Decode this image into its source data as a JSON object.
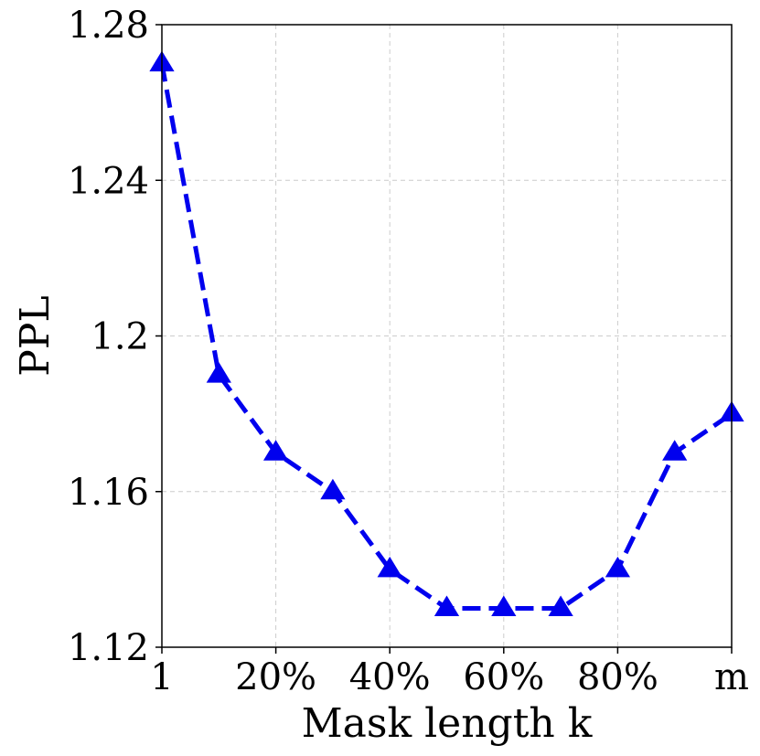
{
  "chart_data": {
    "type": "line",
    "title": "",
    "xlabel": "Mask length k",
    "ylabel": "PPL",
    "x": [
      0,
      1,
      2,
      3,
      4,
      5,
      6,
      7,
      8,
      9,
      10
    ],
    "x_tick_labels": [
      {
        "x": 0,
        "label": "1"
      },
      {
        "x": 2,
        "label": "20%"
      },
      {
        "x": 4,
        "label": "40%"
      },
      {
        "x": 6,
        "label": "60%"
      },
      {
        "x": 8,
        "label": "80%"
      },
      {
        "x": 10,
        "label": "m"
      }
    ],
    "y_ticks": [
      {
        "value": 1.12,
        "label": "1.12"
      },
      {
        "value": 1.16,
        "label": "1.16"
      },
      {
        "value": 1.2,
        "label": "1.2"
      },
      {
        "value": 1.24,
        "label": "1.24"
      },
      {
        "value": 1.28,
        "label": "1.28"
      }
    ],
    "xlim": [
      0,
      10
    ],
    "ylim": [
      1.12,
      1.28
    ],
    "grid": true,
    "series": [
      {
        "marker": "triangle-up",
        "line_style": "dashed",
        "color": "#0000ee",
        "values": [
          1.27,
          1.19,
          1.17,
          1.16,
          1.14,
          1.13,
          1.13,
          1.13,
          1.14,
          1.17,
          1.18
        ]
      }
    ]
  }
}
